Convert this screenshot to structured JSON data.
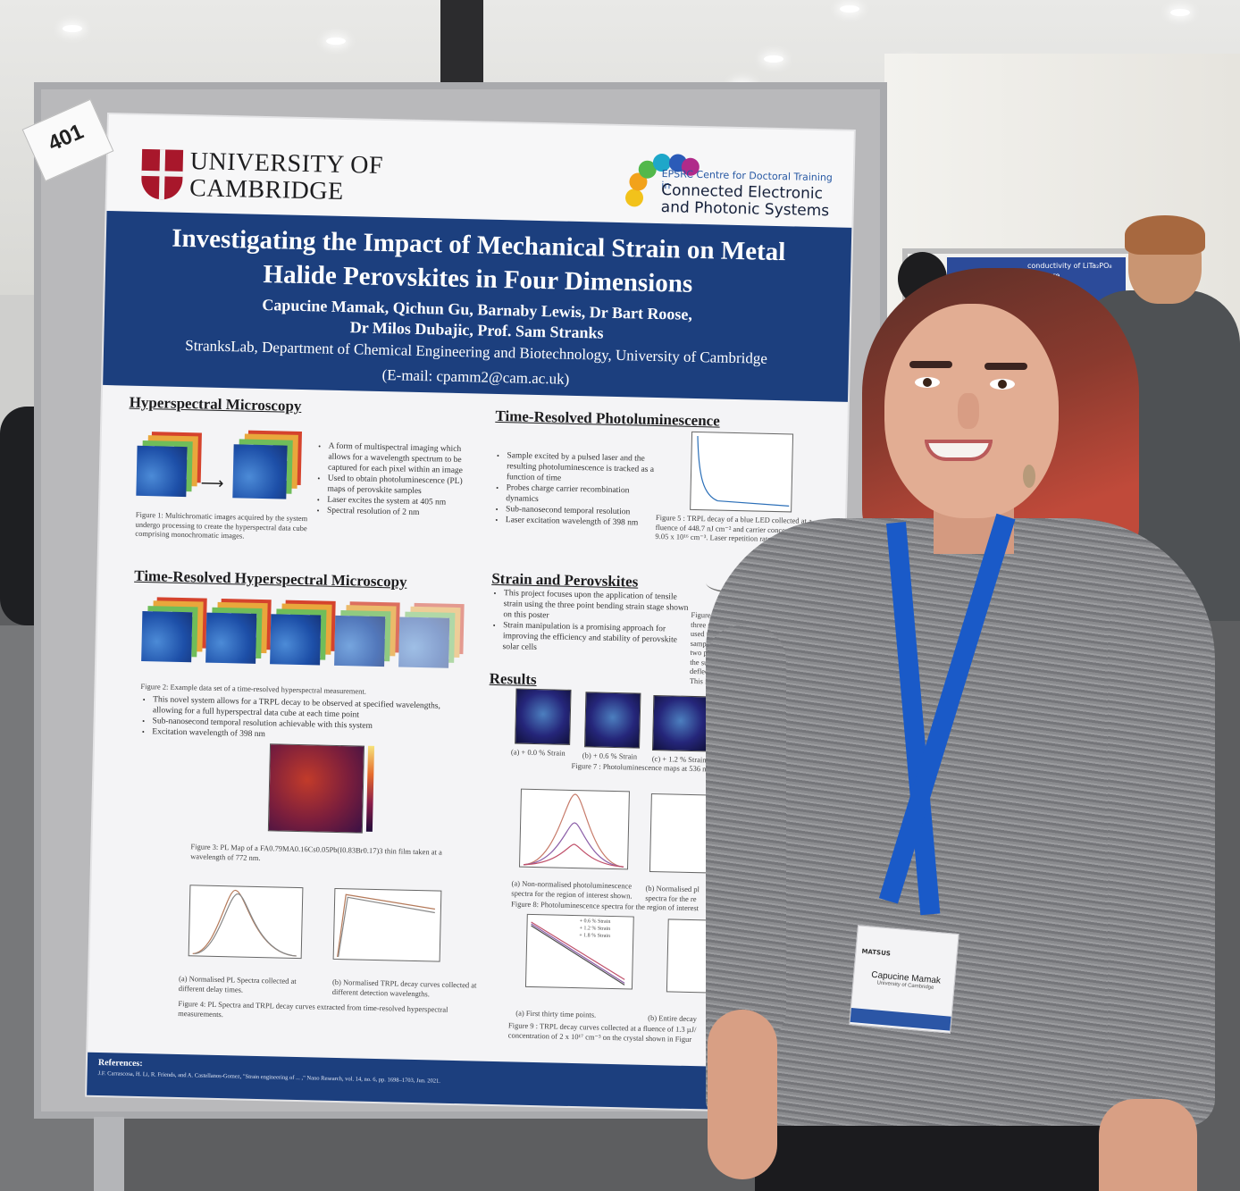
{
  "poster": {
    "tag_number": "401",
    "university": "UNIVERSITY OF CAMBRIDGE",
    "university_line1": "UNIVERSITY OF",
    "university_line2": "CAMBRIDGE",
    "epsrc_small": "EPSRC Centre for Doctoral Training in",
    "epsrc_big_line1": "Connected Electronic",
    "epsrc_big_line2": "and Photonic Systems",
    "title_line1": "Investigating the Impact of Mechanical Strain on Metal",
    "title_line2": "Halide Perovskites in Four Dimensions",
    "authors_line1": "Capucine Mamak, Qichun Gu, Barnaby Lewis, Dr Bart Roose,",
    "authors_line2": "Dr Milos Dubajic, Prof. Sam Stranks",
    "affiliation": "StranksLab, Department of Chemical Engineering and Biotechnology, University of Cambridge",
    "email": "(E-mail: cpamm2@cam.ac.uk)",
    "sections": {
      "hyperspectral": {
        "title": "Hyperspectral Microscopy",
        "bullets": [
          "A form of multispectral imaging which allows for a wavelength spectrum to be captured for each pixel within an image",
          "Used to obtain photoluminescence (PL) maps of perovskite samples",
          "Laser excites the system at 405 nm",
          "Spectral resolution of 2 nm"
        ],
        "figure1_caption": "Figure 1: Multichromatic images acquired by the system undergo processing to create the hyperspectral data cube comprising monochromatic images."
      },
      "trpl": {
        "title": "Time-Resolved Photoluminescence",
        "bullets": [
          "Sample excited by a pulsed laser and the resulting photoluminescence is tracked as a function of time",
          "Probes charge carrier recombination dynamics",
          "Sub-nanosecond temporal resolution",
          "Laser excitation wavelength of 398 nm"
        ],
        "figure5_caption": "Figure 5 : TRPL decay of a blue LED collected at a fluence of 448.7 nJ cm⁻² and carrier concentration of 9.05 x 10¹⁶ cm⁻³. Laser repetition rate 5 kHz."
      },
      "tr_hyperspectral": {
        "title": "Time-Resolved Hyperspectral Microscopy",
        "figure2_caption": "Figure 2: Example data set of a time-resolved hyperspectral measurement.",
        "bullets": [
          "This novel system allows for a TRPL decay to be observed at specified wavelengths, allowing for a full hyperspectral data cube at each time point",
          "Sub-nanosecond temporal resolution achievable with this system",
          "Excitation wavelength of 398 nm"
        ],
        "figure3_caption": "Figure 3: PL Map of a FA0.79MA0.16Cs0.05Pb(I0.83Br0.17)3 thin film taken at a wavelength of 772 nm.",
        "figure4a_caption": "(a) Normalised PL Spectra collected at different delay times.",
        "figure4b_caption": "(b) Normalised TRPL decay curves collected at different detection wavelengths.",
        "figure4_caption": "Figure 4: PL Spectra and TRPL decay curves extracted from time-resolved hyperspectral measurements."
      },
      "strain": {
        "title": "Strain and Perovskites",
        "bullets": [
          "This project focuses upon the application of tensile strain using the three point bending strain stage shown on this poster",
          "Strain manipulation is a promising approach for improving the efficiency and stability of perovskite solar cells"
        ],
        "figure6_caption": "Figure 6 : The three scheme used to ap samples. L is the two pivotal poin the substrate, an deflection (bend This image is ta"
      },
      "results": {
        "title": "Results",
        "map_labels": [
          "(a) + 0.0 % Strain",
          "(b) + 0.6 % Strain",
          "(c) + 1.2 % Strain"
        ],
        "figure7_caption": "Figure 7 : Photoluminescence maps at 536 nm",
        "figure8a_caption": "(a) Non-normalised photoluminescence spectra for the region of interest shown.",
        "figure8b_caption": "(b) Normalised pl spectra for the re",
        "figure8_caption": "Figure 8: Photoluminescence spectra for the region of interest",
        "figure9_legend": [
          "+ 0.6 % Strain",
          "+ 1.2 % Strain",
          "+ 1.8 % Strain"
        ],
        "figure9a_caption": "(a) First thirty time points.",
        "figure9b_caption": "(b) Entire decay",
        "figure9_caption": "Figure 9 : TRPL decay curves collected at a fluence of 1.3 µJ/ concentration of 2 x 10¹⁷ cm⁻³ on the crystal shown in Figur"
      }
    },
    "references_title": "References:",
    "references_text": "J.F. Carrascosa, H. Li, R. Friends, and A. Castellanos-Gomez, \"Strain engineering of ... ,\" Nano Research, vol. 14, no. 6, pp. 1698–1703, Jun. 2021."
  },
  "badge": {
    "event": "MATSUS",
    "name": "Capucine Mamak",
    "org": "University of Cambridge"
  },
  "background_poster_text": "conductivity of LiTa₂PO₈ structure",
  "colors": {
    "poster_navy": "#1c3f7e",
    "lanyard_blue": "#1a5ac8",
    "sweater_grey": "#8a8b8e",
    "cambridge_red": "#a8172b"
  }
}
